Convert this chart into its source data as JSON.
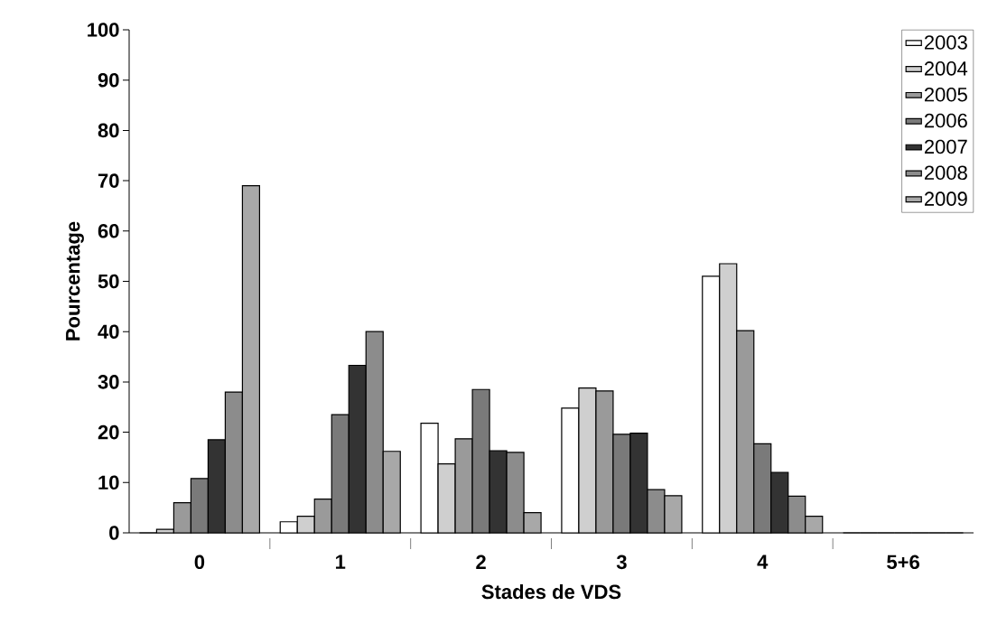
{
  "chart_data": {
    "type": "bar",
    "xlabel": "Stades de VDS",
    "ylabel": "Pourcentage",
    "categories": [
      "0",
      "1",
      "2",
      "3",
      "4",
      "5+6"
    ],
    "series": [
      {
        "name": "2003",
        "color": "#ffffff",
        "values": [
          0,
          2.2,
          21.8,
          24.8,
          51,
          0
        ]
      },
      {
        "name": "2004",
        "color": "#cfcfcf",
        "values": [
          0.7,
          3.3,
          13.7,
          28.8,
          53.5,
          0
        ]
      },
      {
        "name": "2005",
        "color": "#9a9a9a",
        "values": [
          6,
          6.7,
          18.7,
          28.2,
          40.2,
          0
        ]
      },
      {
        "name": "2006",
        "color": "#7a7a7a",
        "values": [
          10.8,
          23.5,
          28.5,
          19.6,
          17.7,
          0
        ]
      },
      {
        "name": "2007",
        "color": "#333333",
        "values": [
          18.5,
          33.3,
          16.3,
          19.8,
          12,
          0
        ]
      },
      {
        "name": "2008",
        "color": "#8c8c8c",
        "values": [
          28,
          40,
          16,
          8.6,
          7.3,
          0
        ]
      },
      {
        "name": "2009",
        "color": "#a8a8a8",
        "values": [
          69,
          16.2,
          4,
          7.4,
          3.3,
          0
        ]
      }
    ],
    "ylim": [
      0,
      100
    ],
    "yticks": [
      0,
      10,
      20,
      30,
      40,
      50,
      60,
      70,
      80,
      90,
      100
    ],
    "grid": false,
    "legend": "top right"
  }
}
